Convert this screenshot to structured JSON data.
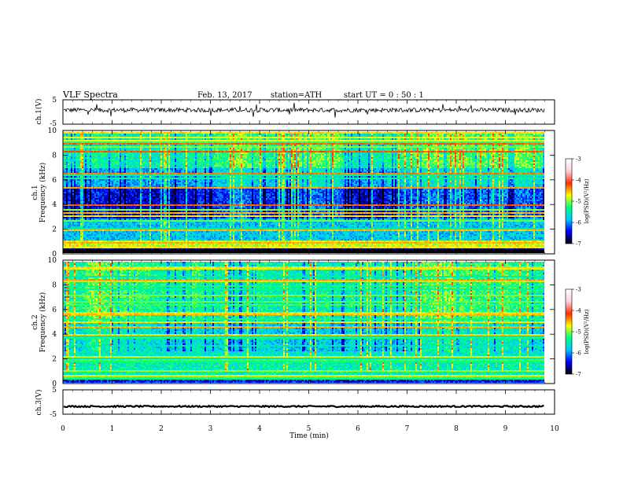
{
  "header": {
    "title": "VLF  Spectra",
    "date": "Feb. 13, 2017",
    "station": "station=ATH",
    "start": "start  UT  =   0 : 50 : 1"
  },
  "chart_data": [
    {
      "type": "line",
      "ylabel": "ch.1(V)",
      "ylim": [
        -5,
        5
      ],
      "yticks": [
        "5",
        "-5"
      ],
      "xlim": [
        0,
        10
      ],
      "baseline": 0.8,
      "noise_amplitude": 0.9
    },
    {
      "type": "heatmap",
      "ylabel_channel": "ch.1",
      "ylabel": "Frequency  (kHz)",
      "ylim": [
        0,
        10
      ],
      "yticks": [
        "0",
        "2",
        "4",
        "6",
        "8",
        "10"
      ],
      "xlim": [
        0,
        9.8
      ],
      "colorbar": {
        "label": "log(PSD)(V²/Hz)",
        "range": [
          -7,
          -3
        ],
        "ticks": [
          "-3",
          "-4",
          "-5",
          "-6",
          "-7"
        ],
        "colors": [
          "#000000",
          "#0000ff",
          "#00c8ff",
          "#00ff80",
          "#ffff00",
          "#ff3000",
          "#ffd0e0",
          "#ffffff"
        ]
      }
    },
    {
      "type": "heatmap",
      "ylabel_channel": "ch.2",
      "ylabel": "Frequency  (kHz)",
      "ylim": [
        0,
        10
      ],
      "yticks": [
        "0",
        "2",
        "4",
        "6",
        "8",
        "10"
      ],
      "xlim": [
        0,
        9.8
      ],
      "colorbar": {
        "label": "log(PSD)(V²/Hz)",
        "range": [
          -7,
          -3
        ],
        "ticks": [
          "-3",
          "-4",
          "-5",
          "-6",
          "-7"
        ],
        "colors": [
          "#000000",
          "#0000ff",
          "#00c8ff",
          "#00ff80",
          "#ffff00",
          "#ff3000",
          "#ffd0e0",
          "#ffffff"
        ]
      }
    },
    {
      "type": "line",
      "ylabel": "ch.3(V)",
      "ylim": [
        -5,
        5
      ],
      "yticks": [
        "5",
        "-5"
      ],
      "xlim": [
        0,
        10
      ],
      "baseline": -1.8,
      "noise_amplitude": 0.3
    }
  ],
  "xaxis": {
    "label": "Time  (min)",
    "ticks": [
      "0",
      "1",
      "2",
      "3",
      "4",
      "5",
      "6",
      "7",
      "8",
      "9",
      "10"
    ],
    "range": [
      0,
      10
    ]
  }
}
